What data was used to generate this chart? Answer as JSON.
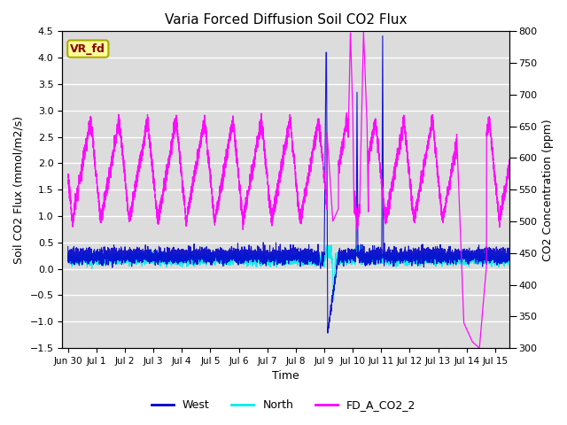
{
  "title": "Varia Forced Diffusion Soil CO2 Flux",
  "xlabel": "Time",
  "ylabel_left": "Soil CO2 Flux (mmol/m2/s)",
  "ylabel_right": "CO2 Concentration (ppm)",
  "xlim_days": [
    -0.2,
    15.5
  ],
  "ylim_left": [
    -1.5,
    4.5
  ],
  "ylim_right": [
    300,
    800
  ],
  "x_ticks_positions": [
    0,
    1,
    2,
    3,
    4,
    5,
    6,
    7,
    8,
    9,
    10,
    11,
    12,
    13,
    14,
    15
  ],
  "x_ticks_labels": [
    "Jun 30",
    "Jul 1",
    "Jul 2",
    "Jul 3",
    "Jul 4",
    "Jul 5",
    "Jul 6",
    "Jul 7",
    "Jul 8",
    "Jul 9",
    "Jul 10",
    "Jul 11",
    "Jul 12",
    "Jul 13",
    "Jul 14",
    "Jul 15"
  ],
  "color_west": "#0000CC",
  "color_north": "#00EEEE",
  "color_fd": "#FF00FF",
  "label_box_bg": "#FFFF99",
  "label_box_text": "#880000",
  "label_box_edge": "#AAAA00",
  "label_box_text_str": "VR_fd",
  "bg_color": "#DCDCDC",
  "grid_color": "white",
  "legend_labels": [
    "West",
    "North",
    "FD_A_CO2_2"
  ],
  "figsize": [
    6.4,
    4.8
  ],
  "dpi": 100
}
